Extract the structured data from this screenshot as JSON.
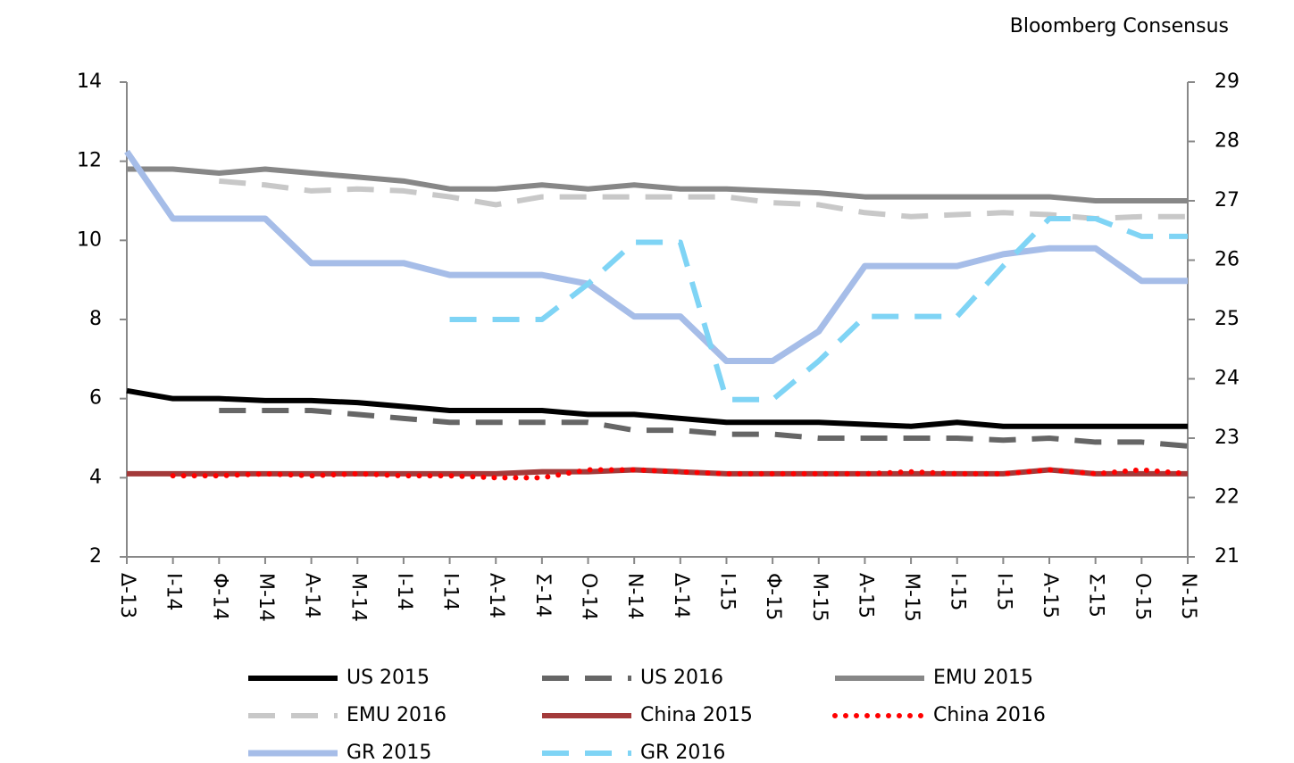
{
  "chart_data": {
    "type": "line",
    "annotation": "Bloomberg Consensus",
    "categories": [
      "Δ-13",
      "Ι-14",
      "Φ-14",
      "Μ-14",
      "Α-14",
      "Μ-14",
      "Ι-14",
      "Ι-14",
      "Α-14",
      "Σ-14",
      "Ο-14",
      "Ν-14",
      "Δ-14",
      "Ι-15",
      "Φ-15",
      "Μ-15",
      "Α-15",
      "Μ-15",
      "Ι-15",
      "Ι-15",
      "Α-15",
      "Σ-15",
      "Ο-15",
      "Ν-15"
    ],
    "ylim": [
      2,
      14
    ],
    "yticks": [
      2,
      4,
      6,
      8,
      10,
      12,
      14
    ],
    "y2lim": [
      21,
      29
    ],
    "y2ticks": [
      21,
      22,
      23,
      24,
      25,
      26,
      27,
      28,
      29
    ],
    "series": [
      {
        "name": "US 2015",
        "color": "#000000",
        "style": "solid",
        "values": [
          6.2,
          6.0,
          6.0,
          5.95,
          5.95,
          5.9,
          5.8,
          5.7,
          5.7,
          5.7,
          5.6,
          5.6,
          5.5,
          5.4,
          5.4,
          5.4,
          5.35,
          5.3,
          5.4,
          5.3,
          5.3,
          5.3,
          5.3,
          5.3
        ]
      },
      {
        "name": "US 2016",
        "color": "#666666",
        "style": "dashed",
        "values": [
          null,
          null,
          5.7,
          5.7,
          5.7,
          5.6,
          5.5,
          5.4,
          5.4,
          5.4,
          5.4,
          5.2,
          5.2,
          5.1,
          5.1,
          5.0,
          5.0,
          5.0,
          5.0,
          4.95,
          5.0,
          4.9,
          4.9,
          4.8
        ]
      },
      {
        "name": "EMU 2015",
        "color": "#878787",
        "style": "solid",
        "values": [
          11.8,
          11.8,
          11.7,
          11.8,
          11.7,
          11.6,
          11.5,
          11.3,
          11.3,
          11.4,
          11.3,
          11.4,
          11.3,
          11.3,
          11.25,
          11.2,
          11.1,
          11.1,
          11.1,
          11.1,
          11.1,
          11.0,
          11.0,
          11.0
        ]
      },
      {
        "name": "EMU 2016",
        "color": "#c8c8c8",
        "style": "dashed",
        "values": [
          null,
          null,
          11.5,
          11.4,
          11.25,
          11.3,
          11.25,
          11.1,
          10.9,
          11.1,
          11.1,
          11.1,
          11.1,
          11.1,
          10.95,
          10.9,
          10.7,
          10.6,
          10.65,
          10.7,
          10.65,
          10.55,
          10.6,
          10.6
        ]
      },
      {
        "name": "China 2015",
        "color": "#a33a3a",
        "style": "solid",
        "values": [
          4.1,
          4.1,
          4.1,
          4.1,
          4.1,
          4.1,
          4.1,
          4.1,
          4.1,
          4.15,
          4.15,
          4.2,
          4.15,
          4.1,
          4.1,
          4.1,
          4.1,
          4.1,
          4.1,
          4.1,
          4.2,
          4.1,
          4.1,
          4.1
        ]
      },
      {
        "name": "China 2016",
        "color": "#ff0000",
        "style": "dotted",
        "values": [
          null,
          4.05,
          4.05,
          4.1,
          4.05,
          4.1,
          4.05,
          4.05,
          4.0,
          4.0,
          4.2,
          4.2,
          4.15,
          4.1,
          4.1,
          4.1,
          4.1,
          4.15,
          4.1,
          4.1,
          4.2,
          4.1,
          4.2,
          4.1
        ]
      },
      {
        "name": "GR 2015",
        "color": "#a6bde8",
        "style": "solid",
        "axis": "y2",
        "values": [
          27.83,
          26.7,
          26.7,
          26.7,
          25.95,
          25.95,
          25.95,
          25.75,
          25.75,
          25.75,
          25.6,
          25.05,
          25.05,
          24.3,
          24.3,
          24.8,
          25.9,
          25.9,
          25.9,
          26.1,
          26.2,
          26.2,
          25.65,
          25.65
        ]
      },
      {
        "name": "GR 2016",
        "color": "#7fd4f5",
        "style": "dashed",
        "axis": "y2",
        "values": [
          null,
          null,
          null,
          null,
          null,
          null,
          null,
          25.0,
          25.0,
          25.0,
          25.6,
          26.3,
          26.3,
          23.65,
          23.65,
          24.3,
          25.05,
          25.05,
          25.05,
          25.9,
          26.7,
          26.7,
          26.4,
          26.4
        ]
      }
    ]
  }
}
